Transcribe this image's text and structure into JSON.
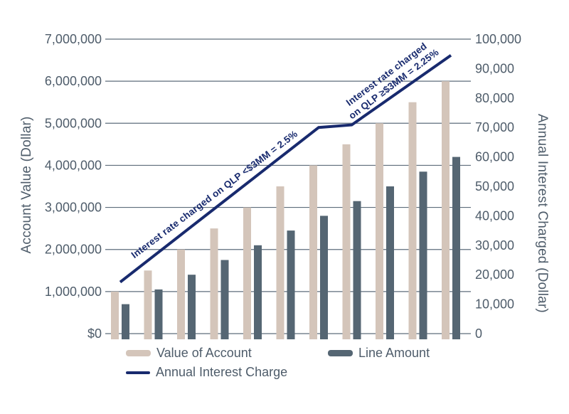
{
  "colors": {
    "background": "#ffffff",
    "text": "#4e5c6a",
    "gridline": "#5e6d7b"
  },
  "chart_data": {
    "type": "bar+line",
    "title": "",
    "left_axis": {
      "title": "Account Value (Dollar)",
      "min": 0,
      "max": 7000000,
      "tick_labels": [
        "$0",
        "1,000,000",
        "2,000,000",
        "3,000,000",
        "4,000,000",
        "5,000,000",
        "6,000,000",
        "7,000,000"
      ]
    },
    "right_axis": {
      "title": "Annual Interest Charged (Dollar)",
      "min": 0,
      "max": 100000,
      "tick_labels": [
        "0",
        "10,000",
        "20,000",
        "30,000",
        "40,000",
        "50,000",
        "60,000",
        "70,000",
        "80,000",
        "90,000",
        "100,000"
      ]
    },
    "grid": "horizontal gridlines at each left-axis tick, behind bars",
    "series": [
      {
        "name": "Value of Account",
        "type": "bar",
        "axis": "left",
        "color": "#d4c5ba",
        "values": [
          1000000,
          1500000,
          2000000,
          2500000,
          3000000,
          3500000,
          4000000,
          4500000,
          5000000,
          5500000,
          6000000
        ]
      },
      {
        "name": "Line Amount",
        "type": "bar",
        "axis": "left",
        "color": "#556673",
        "values": [
          700000,
          1050000,
          1400000,
          1750000,
          2100000,
          2450000,
          2800000,
          3150000,
          3500000,
          3850000,
          4200000
        ]
      },
      {
        "name": "Annual Interest Charge",
        "type": "line",
        "axis": "right",
        "color": "#182a6e",
        "values": [
          17500,
          26250,
          35000,
          43750,
          52500,
          61250,
          70000,
          70875,
          78750,
          86625,
          94500
        ]
      }
    ],
    "annotations": [
      {
        "text": "Interest rate charged on QLP <$3MM = 2.5%"
      },
      {
        "text": "Interest rate charged\non QLP ≥$3MM = 2.25%"
      }
    ],
    "legend": [
      {
        "label": "Value of Account",
        "swatch": "bar",
        "color": "#d4c5ba"
      },
      {
        "label": "Line Amount",
        "swatch": "bar",
        "color": "#556673"
      },
      {
        "label": "Annual Interest Charge",
        "swatch": "line",
        "color": "#182a6e"
      }
    ]
  }
}
